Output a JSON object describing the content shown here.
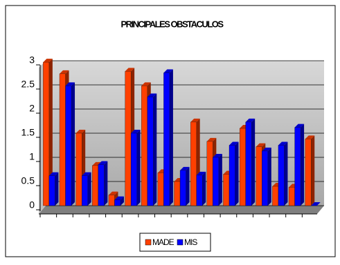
{
  "chart_data": {
    "type": "bar",
    "title": "PRINCIPALES OBSTACULOS",
    "categories": [
      null,
      null,
      null,
      null,
      null,
      null,
      null,
      null,
      null,
      null,
      null,
      null,
      null,
      null,
      null,
      null,
      null
    ],
    "series": [
      {
        "name": "MADE",
        "color": "#ff4000",
        "values": [
          2.97,
          2.73,
          1.5,
          0.83,
          0.22,
          2.78,
          2.48,
          0.68,
          0.5,
          1.73,
          1.33,
          0.65,
          1.6,
          1.22,
          0.4,
          0.38,
          1.38
        ]
      },
      {
        "name": "MIS",
        "color": "#0000ff",
        "values": [
          0.62,
          2.48,
          0.62,
          0.85,
          0.12,
          1.5,
          2.25,
          2.75,
          0.73,
          0.63,
          1.0,
          1.25,
          1.73,
          1.13,
          1.25,
          1.62,
          0
        ]
      }
    ],
    "ylim": [
      0,
      3
    ],
    "yticks": [
      0,
      0.5,
      1,
      1.5,
      2,
      2.5,
      3
    ],
    "grid": true,
    "legend": "bottom"
  }
}
